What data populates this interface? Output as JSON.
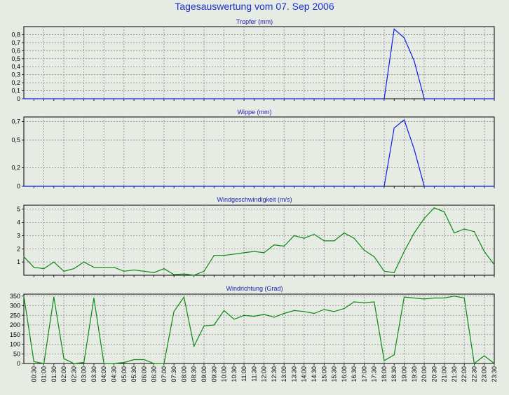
{
  "page_title": "Tagesauswertung vom 07. Sep 2006",
  "chart_data": [
    {
      "type": "line",
      "title": "Tropfer (mm)",
      "color": "#0a1ee6",
      "ylim": [
        0,
        0.9
      ],
      "yticks": [
        0,
        0.1,
        0.2,
        0.3,
        0.4,
        0.5,
        0.6,
        0.7,
        0.8
      ],
      "ytick_labels": [
        "0",
        "0,1",
        "0,2",
        "0,3",
        "0,4",
        "0,5",
        "0,6",
        "0,7",
        "0,8"
      ],
      "x": [
        0.0,
        18.0,
        18.5,
        19.0,
        19.5,
        20.0,
        23.5
      ],
      "values": [
        0,
        0,
        0.87,
        0.76,
        0.47,
        0,
        0
      ],
      "grid": true
    },
    {
      "type": "line",
      "title": "Wippe (mm)",
      "color": "#0a1ee6",
      "ylim": [
        0,
        0.75
      ],
      "yticks": [
        0,
        0.2,
        0.5,
        0.7
      ],
      "ytick_labels": [
        "0",
        "0,2",
        "0,5",
        "0,7"
      ],
      "x": [
        0.0,
        18.0,
        18.5,
        19.0,
        19.5,
        20.0,
        23.5
      ],
      "values": [
        0,
        0,
        0.63,
        0.72,
        0.4,
        0,
        0
      ],
      "grid": true
    },
    {
      "type": "line",
      "title": "Windgeschwindigkeit (m/s)",
      "color": "#0a8a12",
      "ylim": [
        0,
        5.3
      ],
      "yticks": [
        1,
        2,
        3,
        4,
        5
      ],
      "ytick_labels": [
        "1",
        "2",
        "3",
        "4",
        "5"
      ],
      "x": [
        0.0,
        0.5,
        1.0,
        1.5,
        2.0,
        2.5,
        3.0,
        3.5,
        4.0,
        4.5,
        5.0,
        5.5,
        6.0,
        6.5,
        7.0,
        7.5,
        8.0,
        8.5,
        9.0,
        9.5,
        10.0,
        10.5,
        11.0,
        11.5,
        12.0,
        12.5,
        13.0,
        13.5,
        14.0,
        14.5,
        15.0,
        15.5,
        16.0,
        16.5,
        17.0,
        17.5,
        18.0,
        18.5,
        19.0,
        19.5,
        20.0,
        20.5,
        21.0,
        21.5,
        22.0,
        22.5,
        23.0,
        23.5
      ],
      "values": [
        1.4,
        0.6,
        0.5,
        1.0,
        0.3,
        0.5,
        1.0,
        0.6,
        0.6,
        0.6,
        0.3,
        0.4,
        0.3,
        0.2,
        0.5,
        0.05,
        0.1,
        0.0,
        0.3,
        1.5,
        1.5,
        1.6,
        1.7,
        1.8,
        1.7,
        2.3,
        2.2,
        3.0,
        2.8,
        3.1,
        2.6,
        2.6,
        3.2,
        2.8,
        1.9,
        1.4,
        0.3,
        0.2,
        1.8,
        3.2,
        4.3,
        5.1,
        4.8,
        3.2,
        3.5,
        3.3,
        1.8,
        0.8
      ],
      "grid": true
    },
    {
      "type": "line",
      "title": "Windrichtung (Grad)",
      "color": "#0a8a12",
      "ylim": [
        0,
        360
      ],
      "yticks": [
        0,
        50,
        100,
        150,
        200,
        250,
        300,
        350
      ],
      "ytick_labels": [
        "0",
        "50",
        "100",
        "150",
        "200",
        "250",
        "300",
        "350"
      ],
      "x": [
        0.0,
        0.5,
        1.0,
        1.5,
        2.0,
        2.5,
        3.0,
        3.5,
        4.0,
        4.5,
        5.0,
        5.5,
        6.0,
        6.5,
        7.0,
        7.5,
        8.0,
        8.5,
        9.0,
        9.5,
        10.0,
        10.5,
        11.0,
        11.5,
        12.0,
        12.5,
        13.0,
        13.5,
        14.0,
        14.5,
        15.0,
        15.5,
        16.0,
        16.5,
        17.0,
        17.5,
        18.0,
        18.5,
        19.0,
        19.5,
        20.0,
        20.5,
        21.0,
        21.5,
        22.0,
        22.5,
        23.0,
        23.5
      ],
      "values": [
        350,
        10,
        0,
        345,
        25,
        0,
        5,
        340,
        0,
        0,
        5,
        20,
        20,
        0,
        0,
        270,
        345,
        90,
        195,
        200,
        275,
        230,
        250,
        245,
        255,
        240,
        260,
        275,
        270,
        260,
        280,
        270,
        285,
        320,
        315,
        320,
        15,
        45,
        345,
        340,
        335,
        340,
        340,
        350,
        340,
        0,
        40,
        0
      ],
      "grid": true
    }
  ],
  "xaxis": {
    "x_range": [
      0,
      23.5
    ],
    "tick_labels": [
      "00:30",
      "01:00",
      "01:30",
      "02:00",
      "02:30",
      "03:00",
      "03:30",
      "04:00",
      "04:30",
      "05:00",
      "05:30",
      "06:00",
      "06:30",
      "07:00",
      "07:30",
      "08:00",
      "08:30",
      "09:00",
      "09:30",
      "10:00",
      "10:30",
      "11:00",
      "11:30",
      "12:00",
      "12:30",
      "13:00",
      "13:30",
      "14:00",
      "14:30",
      "15:00",
      "15:30",
      "16:00",
      "16:30",
      "17:00",
      "17:30",
      "18:00",
      "18:30",
      "19:00",
      "19:30",
      "20:00",
      "20:30",
      "21:00",
      "21:30",
      "22:00",
      "22:30",
      "23:00",
      "23:30"
    ]
  }
}
